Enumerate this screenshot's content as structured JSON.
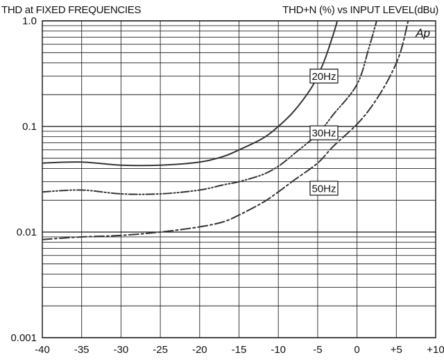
{
  "chart_data": {
    "type": "line",
    "title": "THD at FIXED FREQUENCIES",
    "subtitle": "THD+N (%) vs INPUT LEVEL(dBu)",
    "logo_text": "Ap",
    "xlabel": "",
    "ylabel": "",
    "xlim": [
      -40,
      10
    ],
    "ylim": [
      0.001,
      1.0
    ],
    "y_scale": "log",
    "grid": true,
    "x_ticks": [
      -40,
      -35,
      -30,
      -25,
      -20,
      -15,
      -10,
      -5,
      0,
      5,
      10
    ],
    "x_tick_labels": [
      "-40",
      "-35",
      "-30",
      "-25",
      "-20",
      "-15",
      "-10",
      "-5",
      "0",
      "+5",
      "+10"
    ],
    "y_ticks": [
      0.001,
      0.01,
      0.1,
      1.0
    ],
    "y_tick_labels": [
      "0.001",
      "0.01",
      "0.1",
      "1.0"
    ],
    "series": [
      {
        "name": "20Hz",
        "style": "solid",
        "color": "#333333",
        "points": [
          [
            -40,
            0.045
          ],
          [
            -35,
            0.046
          ],
          [
            -30,
            0.043
          ],
          [
            -25,
            0.043
          ],
          [
            -20,
            0.046
          ],
          [
            -17,
            0.052
          ],
          [
            -15,
            0.06
          ],
          [
            -12,
            0.077
          ],
          [
            -10,
            0.1
          ],
          [
            -8,
            0.14
          ],
          [
            -6,
            0.22
          ],
          [
            -5,
            0.3
          ],
          [
            -4,
            0.45
          ],
          [
            -3,
            0.75
          ],
          [
            -2.5,
            1.0
          ]
        ]
      },
      {
        "name": "30Hz",
        "style": "dash-dot-dot",
        "color": "#333333",
        "points": [
          [
            -40,
            0.024
          ],
          [
            -35,
            0.025
          ],
          [
            -30,
            0.023
          ],
          [
            -25,
            0.023
          ],
          [
            -20,
            0.025
          ],
          [
            -17,
            0.028
          ],
          [
            -15,
            0.03
          ],
          [
            -12,
            0.035
          ],
          [
            -10,
            0.042
          ],
          [
            -8,
            0.055
          ],
          [
            -5,
            0.085
          ],
          [
            -3,
            0.13
          ],
          [
            0,
            0.25
          ],
          [
            1.5,
            0.55
          ],
          [
            2.5,
            1.0
          ]
        ]
      },
      {
        "name": "50Hz",
        "style": "dash-dot",
        "color": "#333333",
        "points": [
          [
            -40,
            0.0085
          ],
          [
            -35,
            0.009
          ],
          [
            -30,
            0.0093
          ],
          [
            -25,
            0.01
          ],
          [
            -20,
            0.0112
          ],
          [
            -17,
            0.0125
          ],
          [
            -15,
            0.0145
          ],
          [
            -12,
            0.019
          ],
          [
            -10,
            0.024
          ],
          [
            -8,
            0.031
          ],
          [
            -5,
            0.045
          ],
          [
            -3,
            0.065
          ],
          [
            0,
            0.105
          ],
          [
            2,
            0.16
          ],
          [
            4,
            0.28
          ],
          [
            5.5,
            0.5
          ],
          [
            6.5,
            1.0
          ]
        ]
      }
    ],
    "annotations": [
      {
        "text": "20Hz",
        "x": -4.2,
        "y": 0.3
      },
      {
        "text": "30Hz",
        "x": -4.2,
        "y": 0.087
      },
      {
        "text": "50Hz",
        "x": -4.2,
        "y": 0.026
      }
    ]
  }
}
